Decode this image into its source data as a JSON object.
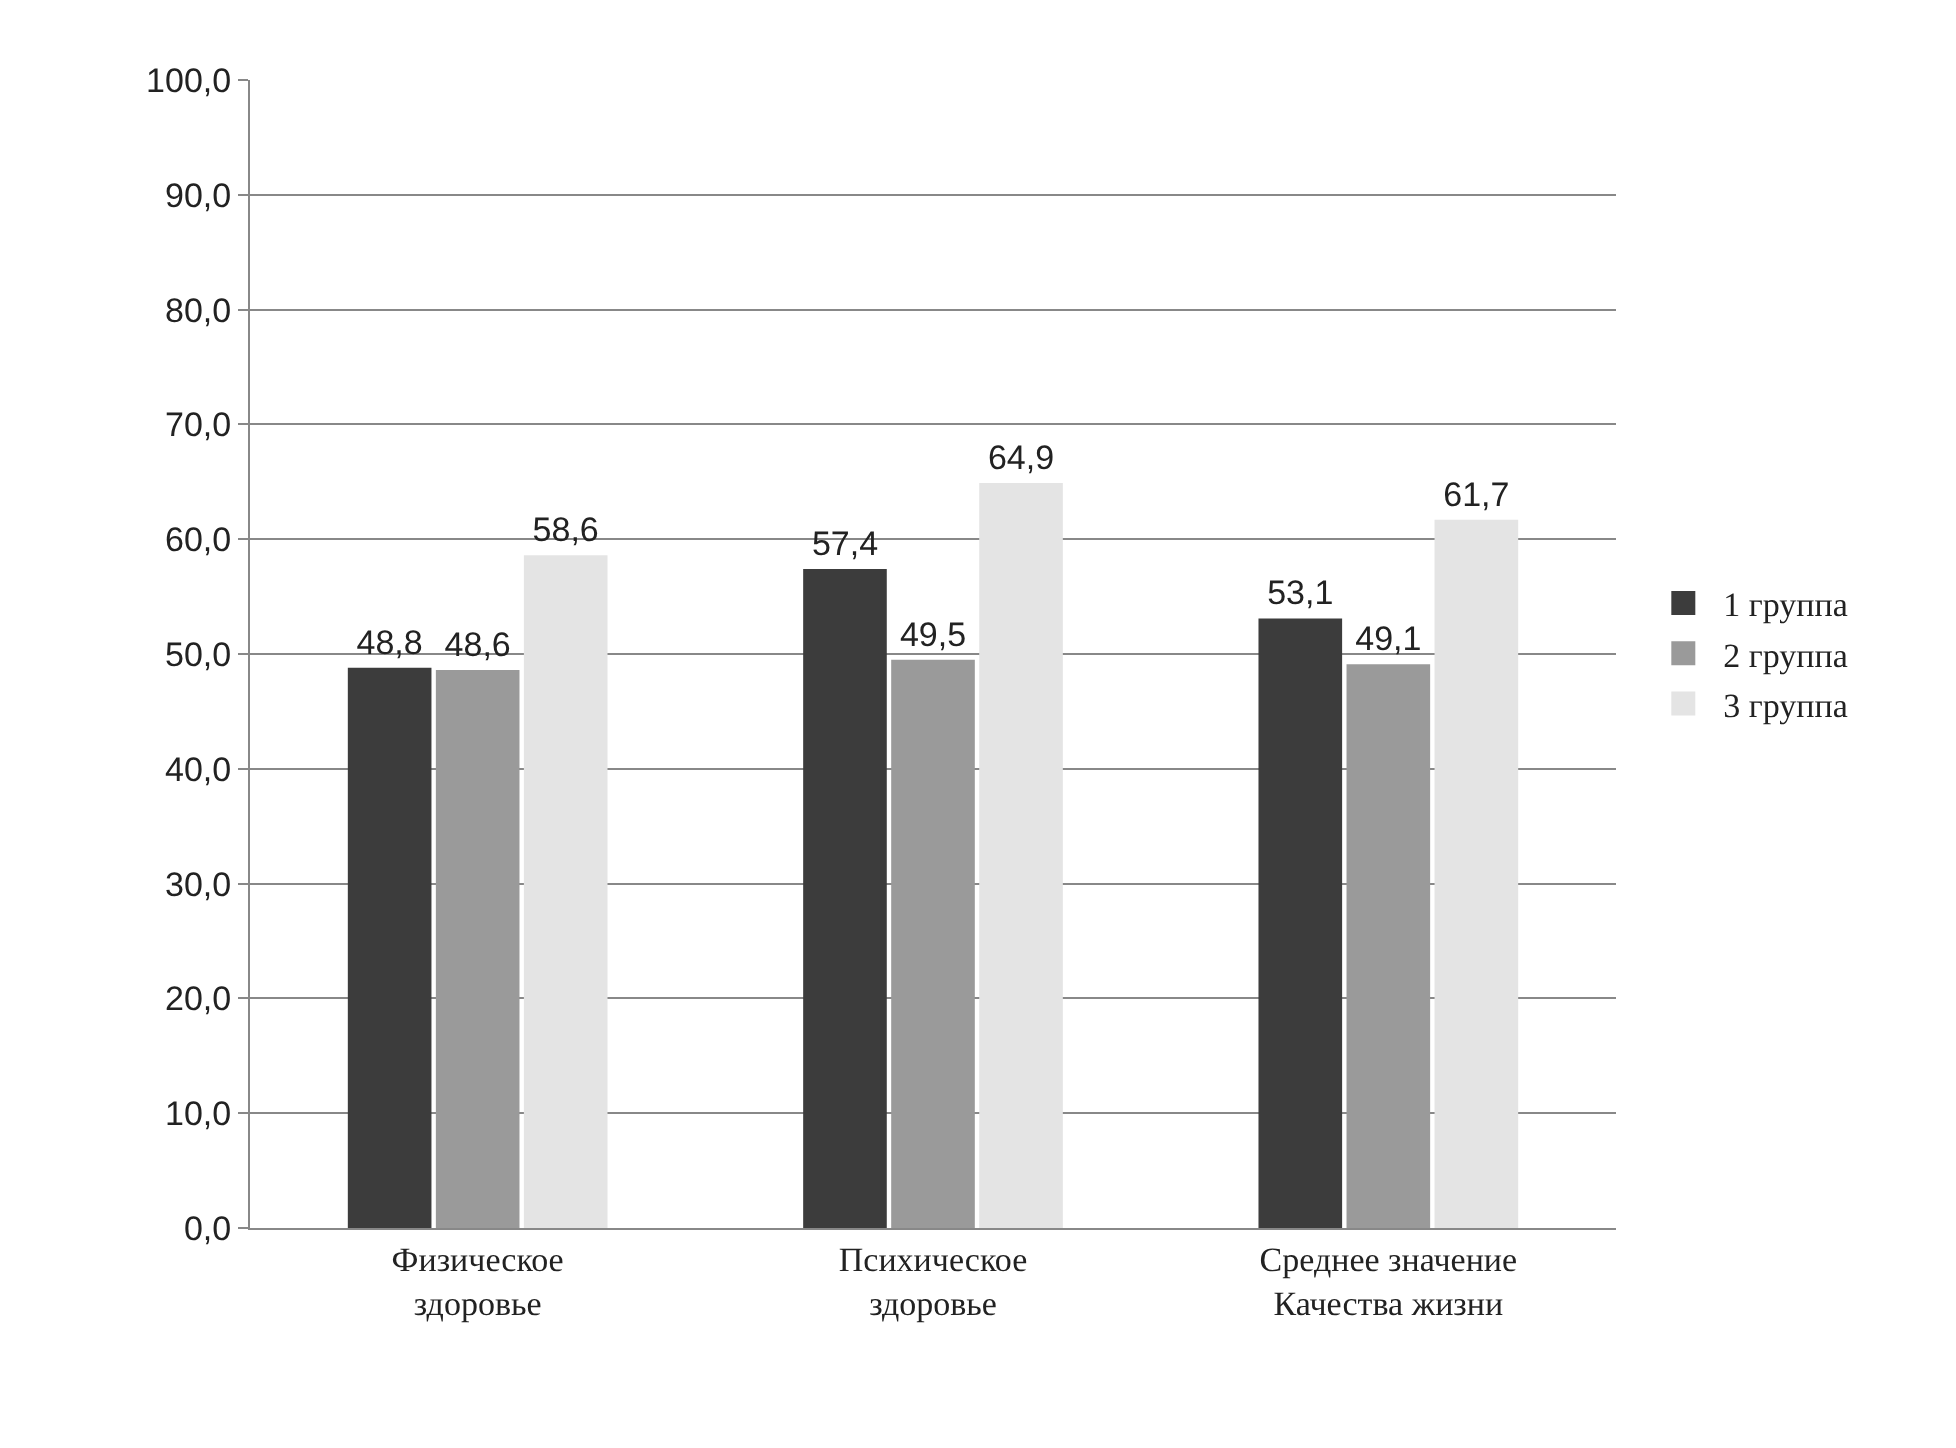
{
  "chart_data": {
    "type": "bar",
    "categories": [
      "Физическое\nздоровье",
      "Психическое\nздоровье",
      "Среднее значение\nКачества жизни"
    ],
    "series": [
      {
        "name": "1 группа",
        "color": "#3c3c3c",
        "values": [
          48.8,
          57.4,
          53.1
        ],
        "value_labels": [
          "48,8",
          "57,4",
          "53,1"
        ]
      },
      {
        "name": "2 группа",
        "color": "#9a9a9a",
        "values": [
          48.6,
          49.5,
          49.1
        ],
        "value_labels": [
          "48,6",
          "49,5",
          "49,1"
        ]
      },
      {
        "name": "3 группа",
        "color": "#e4e4e4",
        "values": [
          58.6,
          64.9,
          61.7
        ],
        "value_labels": [
          "58,6",
          "64,9",
          "61,7"
        ]
      }
    ],
    "ylim": [
      0,
      100
    ],
    "yticks": [
      {
        "value": 0,
        "label": "0,0"
      },
      {
        "value": 10,
        "label": "10,0"
      },
      {
        "value": 20,
        "label": "20,0"
      },
      {
        "value": 30,
        "label": "30,0"
      },
      {
        "value": 40,
        "label": "40,0"
      },
      {
        "value": 50,
        "label": "50,0"
      },
      {
        "value": 60,
        "label": "60,0"
      },
      {
        "value": 70,
        "label": "70,0"
      },
      {
        "value": 80,
        "label": "80,0"
      },
      {
        "value": 90,
        "label": "90,0"
      },
      {
        "value": 100,
        "label": "100,0"
      }
    ],
    "grid": "y",
    "legend": "right"
  }
}
